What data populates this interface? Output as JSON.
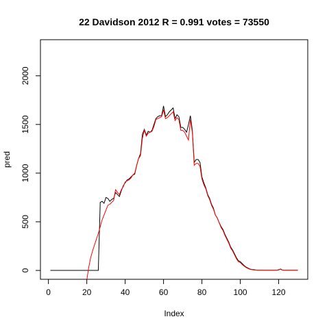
{
  "chart_data": {
    "type": "line",
    "title": "22 Davidson 2012 R = 0.991 votes = 73550",
    "xlabel": "Index",
    "ylabel": "pred",
    "x": [
      1,
      2,
      3,
      4,
      5,
      6,
      7,
      8,
      9,
      10,
      11,
      12,
      13,
      14,
      15,
      16,
      17,
      18,
      19,
      20,
      21,
      22,
      23,
      24,
      25,
      26,
      27,
      28,
      29,
      30,
      31,
      32,
      33,
      34,
      35,
      36,
      37,
      38,
      39,
      40,
      41,
      42,
      43,
      44,
      45,
      46,
      47,
      48,
      49,
      50,
      51,
      52,
      53,
      54,
      55,
      56,
      57,
      58,
      59,
      60,
      61,
      62,
      63,
      64,
      65,
      66,
      67,
      68,
      69,
      70,
      71,
      72,
      73,
      74,
      75,
      76,
      77,
      78,
      79,
      80,
      81,
      82,
      83,
      84,
      85,
      86,
      87,
      88,
      89,
      90,
      91,
      92,
      93,
      94,
      95,
      96,
      97,
      98,
      99,
      100,
      101,
      102,
      103,
      104,
      105,
      106,
      107,
      108,
      109,
      110,
      111,
      112,
      113,
      114,
      115,
      116,
      117,
      118,
      119,
      120,
      121,
      122,
      123,
      124,
      125,
      126,
      127,
      128,
      129,
      130
    ],
    "series": [
      {
        "color": "#000000",
        "values": [
          0,
          0,
          0,
          0,
          0,
          0,
          0,
          0,
          0,
          0,
          0,
          0,
          0,
          0,
          0,
          0,
          0,
          0,
          0,
          0,
          0,
          0,
          0,
          0,
          0,
          0,
          700,
          710,
          690,
          750,
          740,
          710,
          730,
          740,
          800,
          780,
          760,
          820,
          870,
          900,
          930,
          940,
          960,
          980,
          990,
          1080,
          1150,
          1200,
          1400,
          1450,
          1390,
          1430,
          1420,
          1440,
          1500,
          1560,
          1580,
          1590,
          1590,
          1690,
          1580,
          1600,
          1630,
          1650,
          1670,
          1560,
          1600,
          1580,
          1470,
          1470,
          1450,
          1420,
          1500,
          1590,
          1440,
          1110,
          1140,
          1140,
          1110,
          960,
          900,
          850,
          780,
          740,
          680,
          640,
          570,
          540,
          490,
          450,
          420,
          370,
          330,
          290,
          240,
          210,
          170,
          130,
          100,
          90,
          70,
          50,
          35,
          25,
          15,
          10,
          8,
          5,
          2,
          2,
          2,
          2,
          2,
          2,
          2,
          2,
          2,
          2,
          2,
          5,
          15,
          3,
          2,
          2,
          2,
          2,
          2,
          2,
          2,
          2
        ]
      },
      {
        "color": "#ff0000",
        "values": [
          null,
          null,
          null,
          null,
          null,
          null,
          null,
          null,
          null,
          null,
          null,
          null,
          null,
          null,
          null,
          null,
          null,
          null,
          null,
          -100,
          30,
          130,
          200,
          260,
          320,
          380,
          450,
          520,
          570,
          620,
          670,
          680,
          700,
          720,
          830,
          800,
          780,
          830,
          860,
          910,
          920,
          930,
          950,
          980,
          1000,
          1080,
          1150,
          1180,
          1360,
          1440,
          1380,
          1410,
          1420,
          1430,
          1480,
          1550,
          1560,
          1570,
          1580,
          1650,
          1560,
          1570,
          1590,
          1610,
          1630,
          1540,
          1570,
          1550,
          1440,
          1440,
          1420,
          1380,
          1340,
          1550,
          1420,
          1080,
          1100,
          1100,
          1070,
          940,
          880,
          840,
          770,
          730,
          670,
          630,
          570,
          540,
          490,
          440,
          410,
          360,
          320,
          280,
          230,
          200,
          160,
          120,
          90,
          80,
          60,
          45,
          30,
          20,
          12,
          8,
          5,
          4,
          3,
          2,
          2,
          2,
          2,
          2,
          2,
          2,
          2,
          2,
          2,
          8,
          12,
          3,
          2,
          2,
          2,
          2,
          2,
          2,
          2,
          2
        ]
      }
    ],
    "xlim": [
      -4.16,
      135.16
    ],
    "ylim": [
      -91,
      2371
    ],
    "xticks": [
      0,
      20,
      40,
      60,
      80,
      100,
      120
    ],
    "yticks": [
      0,
      500,
      1000,
      1500,
      2000
    ]
  }
}
